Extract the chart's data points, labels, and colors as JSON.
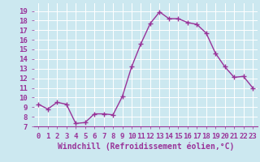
{
  "x": [
    0,
    1,
    2,
    3,
    4,
    5,
    6,
    7,
    8,
    9,
    10,
    11,
    12,
    13,
    14,
    15,
    16,
    17,
    18,
    19,
    20,
    21,
    22,
    23
  ],
  "y": [
    9.3,
    8.8,
    9.5,
    9.3,
    7.3,
    7.4,
    8.3,
    8.3,
    8.2,
    10.1,
    13.2,
    15.6,
    17.7,
    18.9,
    18.2,
    18.2,
    17.8,
    17.6,
    16.7,
    14.6,
    13.2,
    12.1,
    12.2,
    11.0
  ],
  "line_color": "#993399",
  "marker": "+",
  "marker_size": 4,
  "xlabel": "Windchill (Refroidissement éolien,°C)",
  "ylabel_ticks": [
    7,
    8,
    9,
    10,
    11,
    12,
    13,
    14,
    15,
    16,
    17,
    18,
    19
  ],
  "xlim": [
    -0.5,
    23.5
  ],
  "ylim": [
    7,
    19.8
  ],
  "bg_color": "#cce8f0",
  "grid_color": "#b0d8e8",
  "tick_label_color": "#993399",
  "xlabel_color": "#993399",
  "xlabel_fontsize": 7,
  "tick_fontsize": 6.5,
  "linewidth": 1.0,
  "markeredgewidth": 1.0
}
